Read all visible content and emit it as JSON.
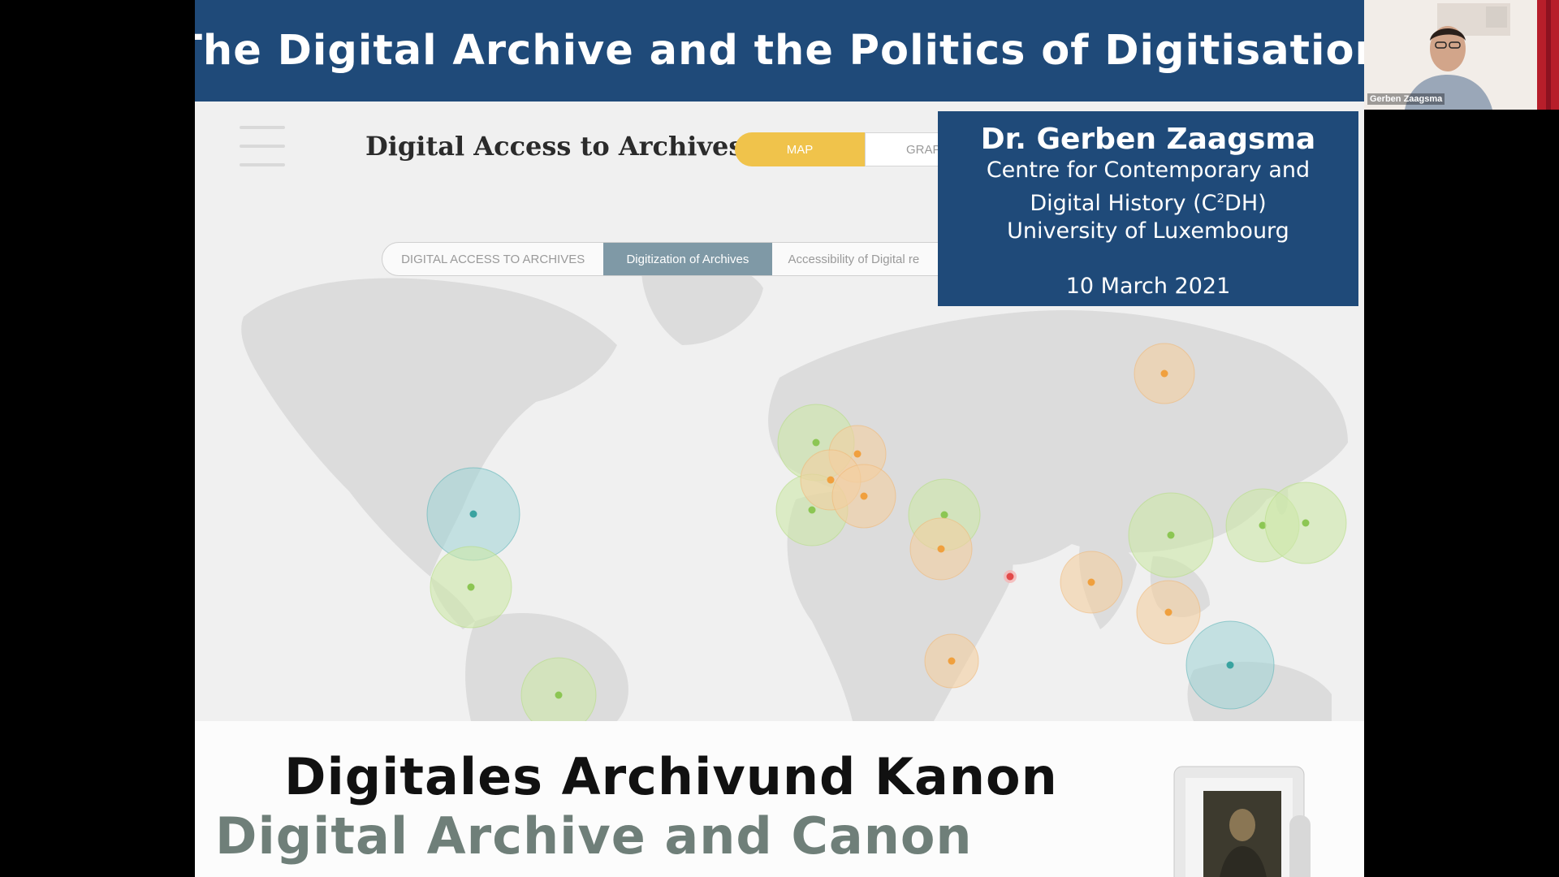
{
  "slide": {
    "title": "The Digital Archive and the Politics of Digitisation"
  },
  "website": {
    "title": "Digital Access to Archives",
    "view_toggle": {
      "map_label": "MAP",
      "graph_label": "GRAPH"
    },
    "filter_tabs": [
      {
        "label": "DIGITAL ACCESS TO ARCHIVES",
        "active": false
      },
      {
        "label": "Digitization of Archives",
        "active": true
      },
      {
        "label": "Accessibility of Digital re",
        "active": false
      }
    ],
    "colors": {
      "toggle_active": "#f0c34b",
      "tab_active": "#7f99a6",
      "marker_orange": "#f0a856",
      "marker_green": "#9dd46e",
      "marker_teal": "#3aa3a0",
      "marker_red": "#e24a4a"
    },
    "map_markers": [
      {
        "region": "north-america-east",
        "color": "teal"
      },
      {
        "region": "mexico",
        "color": "green"
      },
      {
        "region": "south-america",
        "color": "green"
      },
      {
        "region": "western-europe",
        "color": "green"
      },
      {
        "region": "central-europe",
        "color": "orange"
      },
      {
        "region": "france",
        "color": "orange"
      },
      {
        "region": "italy",
        "color": "orange"
      },
      {
        "region": "iberia",
        "color": "green"
      },
      {
        "region": "turkey",
        "color": "green"
      },
      {
        "region": "eastern-mediterranean",
        "color": "orange"
      },
      {
        "region": "arabia",
        "color": "red"
      },
      {
        "region": "east-africa",
        "color": "orange"
      },
      {
        "region": "india",
        "color": "orange"
      },
      {
        "region": "siberia",
        "color": "orange"
      },
      {
        "region": "china",
        "color": "green"
      },
      {
        "region": "korea",
        "color": "green"
      },
      {
        "region": "japan",
        "color": "green"
      },
      {
        "region": "southeast-asia",
        "color": "orange"
      },
      {
        "region": "indonesia",
        "color": "teal"
      }
    ]
  },
  "speaker": {
    "name": "Dr. Gerben Zaagsma",
    "affiliation_line1": "Centre for Contemporary and",
    "affiliation_line2_pre": "Digital History (C",
    "affiliation_line2_sup": "2",
    "affiliation_line2_post": "DH)",
    "university": "University of Luxembourg",
    "date": "10 March 2021"
  },
  "bottom_slide": {
    "german_title": "Digitales Archivund Kanon",
    "english_title": "Digital Archive and Canon"
  },
  "webcam": {
    "participant_name": "Gerben Zaagsma"
  }
}
